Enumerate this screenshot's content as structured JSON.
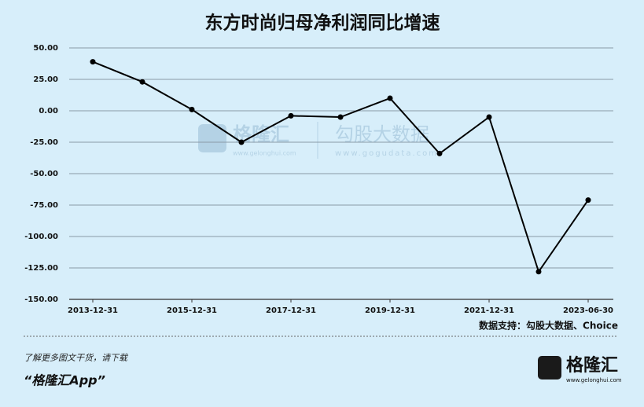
{
  "chart_data": {
    "type": "line",
    "title": "东方时尚归母净利润同比增速",
    "categories": [
      "2013-12-31",
      null,
      "2015-12-31",
      null,
      "2017-12-31",
      null,
      "2019-12-31",
      null,
      "2021-12-31",
      null,
      "2023-06-30"
    ],
    "series": [
      {
        "color": "#000000",
        "values": [
          39,
          23,
          1,
          -25,
          -4,
          -5,
          10,
          -34,
          -5,
          -128,
          -71
        ]
      }
    ],
    "ylim": [
      -150,
      50
    ],
    "yticks": [
      {
        "value": 50,
        "label": "50.00"
      },
      {
        "value": 25,
        "label": "25.00"
      },
      {
        "value": 0,
        "label": "0.00"
      },
      {
        "value": -25,
        "label": "-25.00"
      },
      {
        "value": -50,
        "label": "-50.00"
      },
      {
        "value": -75,
        "label": "-75.00"
      },
      {
        "value": -100,
        "label": "-100.00"
      },
      {
        "value": -125,
        "label": "-125.00"
      },
      {
        "value": -150,
        "label": "-150.00"
      }
    ],
    "grid": true,
    "source": "数据支持：勾股大数据、Choice"
  },
  "watermark": {
    "brand": "格隆汇",
    "brand_url": "www.gelonghui.com",
    "partner": "勾股大数据",
    "partner_url": "www.gogudata.com"
  },
  "footer": {
    "note": "了解更多图文干货，请下载",
    "app": "“格隆汇App”",
    "logo": "格隆汇",
    "logo_url": "www.gelonghui.com"
  }
}
